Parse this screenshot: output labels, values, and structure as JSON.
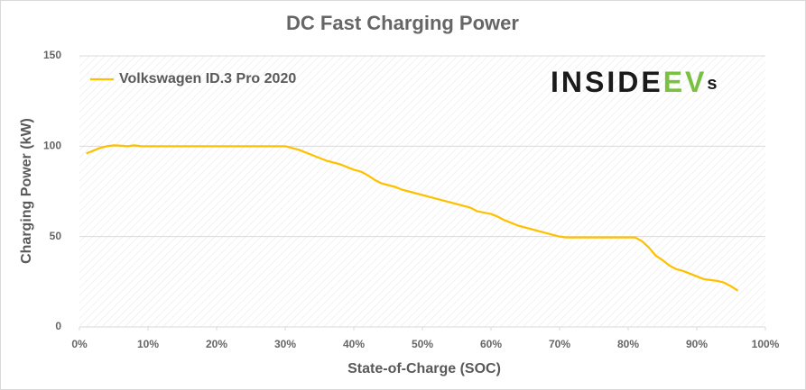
{
  "chart_data": {
    "type": "line",
    "title": "DC Fast Charging Power",
    "xlabel": "State-of-Charge  (SOC)",
    "ylabel": "Charging Power (kW)",
    "logo": {
      "main": "INSIDE",
      "accent": "EV",
      "tail": "s"
    },
    "x": [
      1,
      2,
      3,
      4,
      5,
      6,
      7,
      8,
      9,
      10,
      15,
      20,
      25,
      30,
      31,
      32,
      33,
      34,
      35,
      36,
      37,
      38,
      39,
      40,
      41,
      42,
      43,
      44,
      45,
      46,
      47,
      48,
      49,
      50,
      52,
      54,
      56,
      57,
      58,
      60,
      61,
      62,
      64,
      66,
      68,
      70,
      71,
      75,
      80,
      81,
      82,
      83,
      84,
      85,
      86,
      87,
      88,
      89,
      90,
      91,
      92,
      93,
      94,
      95,
      96
    ],
    "series": [
      {
        "name": "Volkswagen ID.3 Pro 2020",
        "color": "#ffc000",
        "values": [
          96,
          97.5,
          99,
          100,
          100.5,
          100.3,
          100,
          100.5,
          100,
          100,
          100,
          100,
          100,
          100,
          99,
          98,
          96.5,
          95,
          93.5,
          92,
          91,
          90,
          88.5,
          87,
          86,
          84,
          81.5,
          79.5,
          78.5,
          77.5,
          76,
          75,
          74,
          73,
          71,
          69,
          67,
          66,
          64,
          62.5,
          61,
          59,
          56,
          54,
          52,
          50,
          49.5,
          49.5,
          49.5,
          49.5,
          47.5,
          44,
          39.5,
          37,
          34,
          32,
          31,
          29.5,
          28,
          26.5,
          26,
          25.5,
          24.5,
          22.5,
          20
        ]
      }
    ],
    "xlim": [
      0,
      100
    ],
    "xticks": [
      {
        "value": 0,
        "label": "0%"
      },
      {
        "value": 10,
        "label": "10%"
      },
      {
        "value": 20,
        "label": "20%"
      },
      {
        "value": 30,
        "label": "30%"
      },
      {
        "value": 40,
        "label": "40%"
      },
      {
        "value": 50,
        "label": "50%"
      },
      {
        "value": 60,
        "label": "60%"
      },
      {
        "value": 70,
        "label": "70%"
      },
      {
        "value": 80,
        "label": "80%"
      },
      {
        "value": 90,
        "label": "90%"
      },
      {
        "value": 100,
        "label": "100%"
      }
    ],
    "ylim": [
      0,
      150
    ],
    "yticks": [
      0,
      50,
      100,
      150
    ],
    "grid": true,
    "legend": "upper-left"
  }
}
